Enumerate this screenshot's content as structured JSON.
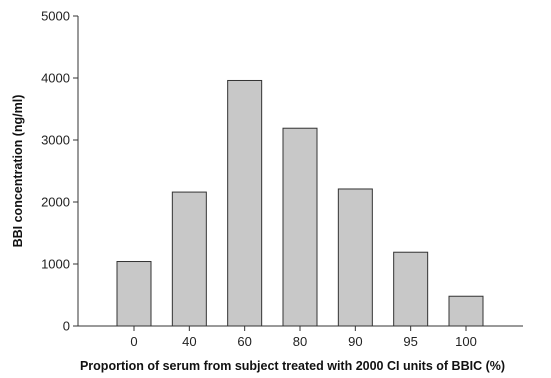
{
  "chart_data": {
    "type": "bar",
    "title": "",
    "xlabel": "Proportion of serum from subject treated with 2000 CI units of BBIC (%)",
    "ylabel": "BBI concentration (ng/ml)",
    "categories": [
      "0",
      "40",
      "60",
      "80",
      "90",
      "95",
      "100"
    ],
    "values": [
      1040,
      2160,
      3960,
      3190,
      2210,
      1190,
      480
    ],
    "ylim": [
      0,
      5000
    ],
    "yticks": [
      0,
      1000,
      2000,
      3000,
      4000,
      5000
    ],
    "grid": false,
    "legend": "none",
    "bar_color": "#c8c8c8"
  }
}
